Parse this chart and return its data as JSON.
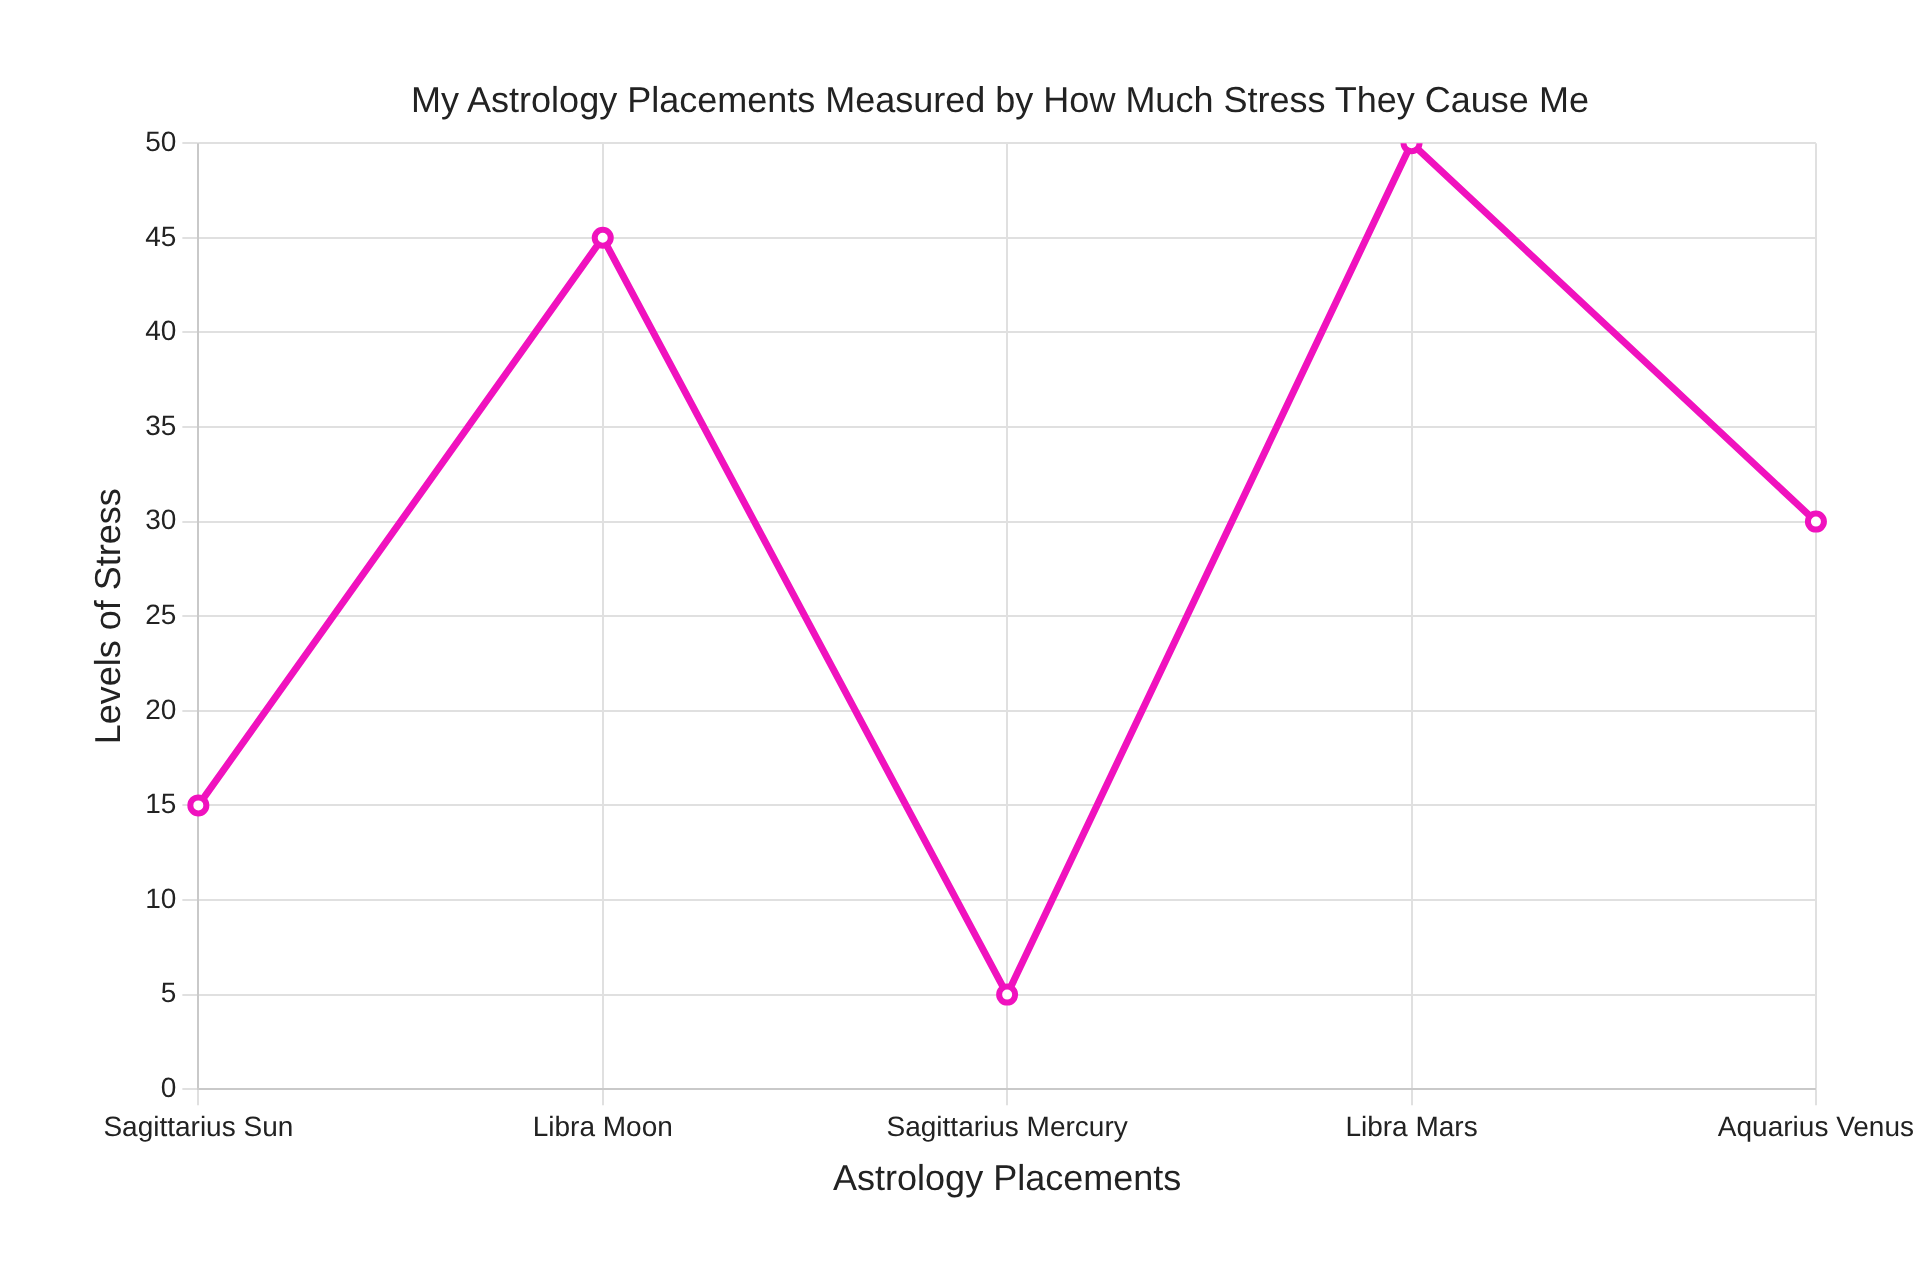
{
  "chart_data": {
    "type": "line",
    "title": "My Astrology Placements Measured by How Much Stress They Cause Me",
    "xlabel": "Astrology Placements",
    "ylabel": "Levels of Stress",
    "categories": [
      "Sagittarius Sun",
      "Libra Moon",
      "Sagittarius Mercury",
      "Libra Mars",
      "Aquarius Venus"
    ],
    "series": [
      {
        "color": "#f012be",
        "values": [
          15,
          45,
          5,
          50,
          30
        ]
      }
    ],
    "ylim": [
      0,
      50
    ],
    "yticks": [
      0,
      5,
      10,
      15,
      20,
      25,
      30,
      35,
      40,
      45,
      50
    ],
    "grid": true,
    "legend": false,
    "marker": "circle",
    "line_style": "solid"
  }
}
